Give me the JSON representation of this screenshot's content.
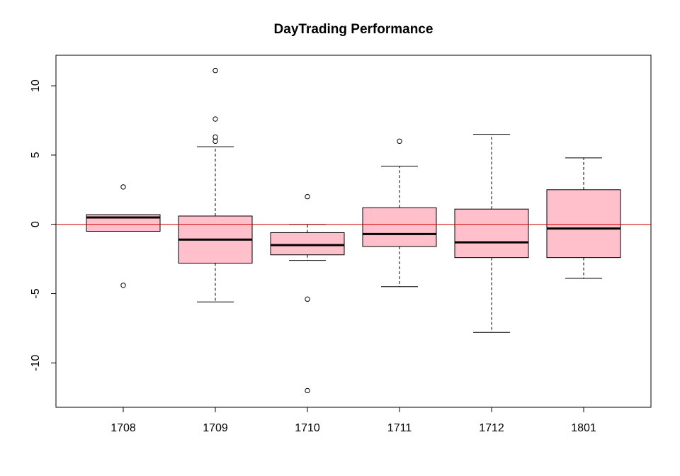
{
  "chart_data": {
    "type": "boxplot",
    "title": "DayTrading Performance",
    "xlabel": "",
    "ylabel": "",
    "ylim": [
      -13,
      12
    ],
    "yticks": [
      -10,
      -5,
      0,
      5,
      10
    ],
    "ytick_labels": [
      "-10",
      "-5",
      "0",
      "5",
      "10"
    ],
    "grid": false,
    "reference_line": {
      "y": 0,
      "color": "#cc0000"
    },
    "box_fill": "#ffc0cb",
    "categories": [
      "1708",
      "1709",
      "1710",
      "1711",
      "1712",
      "1801"
    ],
    "boxes": [
      {
        "label": "1708",
        "whisker_low": -0.5,
        "q1": -0.5,
        "median": 0.5,
        "q3": 0.7,
        "whisker_high": 0.7,
        "outliers": [
          2.7,
          -4.4
        ]
      },
      {
        "label": "1709",
        "whisker_low": -5.6,
        "q1": -2.8,
        "median": -1.1,
        "q3": 0.6,
        "whisker_high": 5.6,
        "outliers": [
          11.1,
          7.6,
          6.3,
          6.0
        ]
      },
      {
        "label": "1710",
        "whisker_low": -2.6,
        "q1": -2.2,
        "median": -1.5,
        "q3": -0.6,
        "whisker_high": 0.0,
        "outliers": [
          2.0,
          -5.4,
          -12.0
        ]
      },
      {
        "label": "1711",
        "whisker_low": -4.5,
        "q1": -1.6,
        "median": -0.7,
        "q3": 1.2,
        "whisker_high": 4.2,
        "outliers": [
          6.0
        ]
      },
      {
        "label": "1712",
        "whisker_low": -7.8,
        "q1": -2.4,
        "median": -1.3,
        "q3": 1.1,
        "whisker_high": 6.5,
        "outliers": []
      },
      {
        "label": "1801",
        "whisker_low": -3.9,
        "q1": -2.4,
        "median": -0.3,
        "q3": 2.5,
        "whisker_high": 4.8,
        "outliers": []
      }
    ]
  }
}
